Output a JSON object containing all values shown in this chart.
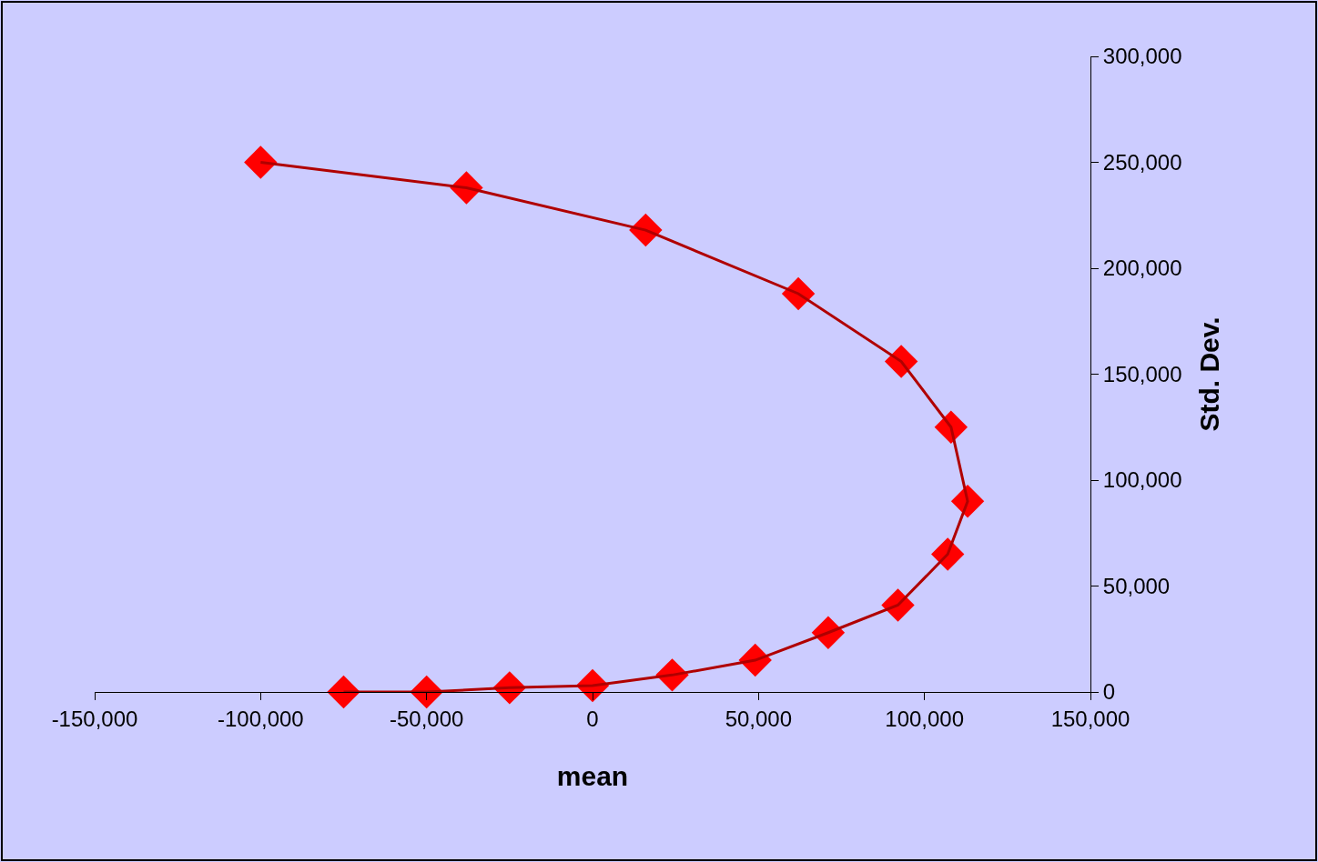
{
  "chart_data": {
    "type": "line",
    "xlabel": "mean",
    "ylabel": "Std. Dev.",
    "series": [
      {
        "color": "#ff0000",
        "x": [
          -100000,
          -38000,
          16000,
          62000,
          93000,
          108000,
          113000,
          107000,
          92000,
          71000,
          49000,
          24000,
          0,
          -25000,
          -50000,
          -75000
        ],
        "values": [
          250000,
          238000,
          218000,
          188000,
          156000,
          125000,
          90000,
          65000,
          41000,
          28000,
          15000,
          8000,
          3000,
          2000,
          0,
          0
        ]
      }
    ],
    "xlim": [
      -150000,
      150000
    ],
    "xticks": [
      {
        "value": -150000,
        "label": "-150,000"
      },
      {
        "value": -100000,
        "label": "-100,000"
      },
      {
        "value": -50000,
        "label": "-50,000"
      },
      0,
      {
        "value": 50000,
        "label": "50,000"
      },
      {
        "value": 100000,
        "label": "100,000"
      },
      {
        "value": 150000,
        "label": "150,000"
      }
    ],
    "ylim": [
      0,
      300000
    ],
    "yticks": [
      0,
      {
        "value": 50000,
        "label": "50,000"
      },
      {
        "value": 100000,
        "label": "100,000"
      },
      {
        "value": 150000,
        "label": "150,000"
      },
      {
        "value": 200000,
        "label": "200,000"
      },
      {
        "value": 250000,
        "label": "250,000"
      },
      {
        "value": 300000,
        "label": "300,000"
      }
    ],
    "grid": false,
    "legend": false,
    "marker": "diamond",
    "line_style": "solid"
  }
}
